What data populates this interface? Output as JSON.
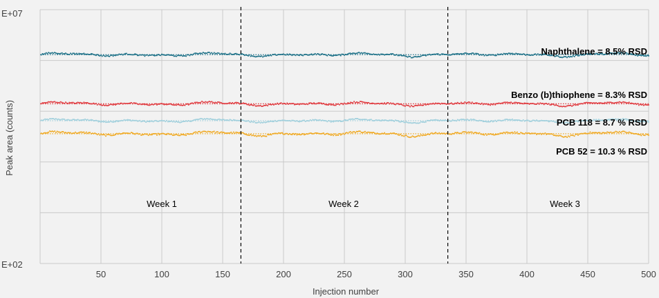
{
  "chart_data": {
    "type": "scatter",
    "title": "",
    "xlabel": "Injection number",
    "ylabel": "Peak area (counts)",
    "xlim": [
      0,
      500
    ],
    "x_ticks": [
      50,
      100,
      150,
      200,
      250,
      300,
      350,
      400,
      450,
      500
    ],
    "x_tick_labels": [
      "50",
      "100",
      "150",
      "200",
      "250",
      "300",
      "350",
      "400",
      "450",
      "500"
    ],
    "y_scale": "log",
    "ylim": [
      100,
      10000000
    ],
    "y_gridlines": [
      100,
      1000,
      10000,
      100000,
      1000000,
      10000000
    ],
    "y_tick_labels": {
      "top": "E+07",
      "bottom": "E+02"
    },
    "grid": true,
    "dividers": [
      165,
      335
    ],
    "weeks": [
      {
        "label": "Week 1",
        "x": 100
      },
      {
        "label": "Week 2",
        "x": 250
      },
      {
        "label": "Week 3",
        "x": 420
      }
    ],
    "series": [
      {
        "label": "Naphthalene = 8.5% RSD",
        "color": "#1a6f86",
        "mean": 1300000,
        "rsd": 8.5
      },
      {
        "label": "Benzo (b)thiophene = 8.3% RSD",
        "color": "#9fcfdc",
        "mean": 65000,
        "rsd": 8.3
      },
      {
        "label": "PCB 118 = 8.7 % RSD",
        "color": "#e0393e",
        "mean": 140000,
        "rsd": 8.7
      },
      {
        "label": "PCB 52 = 10.3 % RSD",
        "color": "#f0a922",
        "mean": 36000,
        "rsd": 10.3
      }
    ],
    "n_points": 500
  }
}
